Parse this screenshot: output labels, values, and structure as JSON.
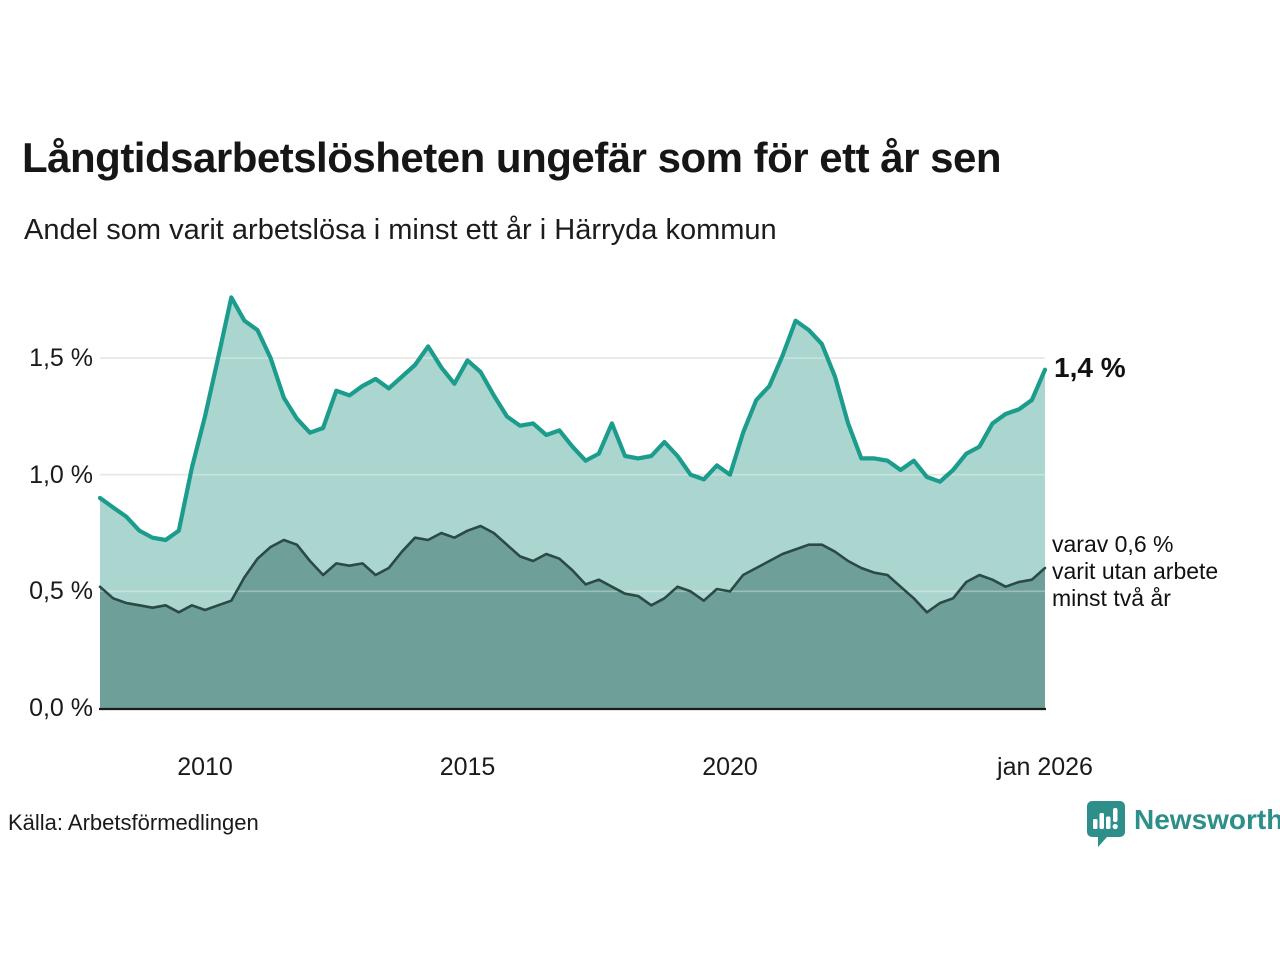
{
  "header": {
    "title": "Långtidsarbetslösheten ungefär som för ett år sen",
    "subtitle": "Andel som varit arbetslösa i minst ett år i Härryda kommun"
  },
  "chart_data": {
    "type": "area",
    "title": "Långtidsarbetslösheten ungefär som för ett år sen",
    "subtitle": "Andel som varit arbetslösa i minst ett år i Härryda kommun",
    "x_start_year": 2008.0,
    "x_end_year": 2026.0,
    "x_step_years": 0.25,
    "x_end_label": "jan 2026",
    "ylim": [
      0,
      1.85
    ],
    "grid": true,
    "legend_position": "none",
    "yticks": [
      {
        "value": 0.0,
        "label": "0,0 %"
      },
      {
        "value": 0.5,
        "label": "0,5 %"
      },
      {
        "value": 1.0,
        "label": "1,0 %"
      },
      {
        "value": 1.5,
        "label": "1,5 %"
      }
    ],
    "xticks": [
      {
        "year": 2010,
        "label": "2010"
      },
      {
        "year": 2015,
        "label": "2015"
      },
      {
        "year": 2020,
        "label": "2020"
      },
      {
        "year": 2026,
        "label": "jan 2026"
      }
    ],
    "series": [
      {
        "name": "Andel som varit arbetslösa i minst ett år",
        "line_color": "#1b9c8c",
        "fill_color": "#abd6cf",
        "latest_value": 1.4,
        "values": [
          0.9,
          0.86,
          0.82,
          0.76,
          0.73,
          0.72,
          0.76,
          1.03,
          1.25,
          1.5,
          1.76,
          1.66,
          1.62,
          1.5,
          1.33,
          1.24,
          1.18,
          1.2,
          1.36,
          1.34,
          1.38,
          1.41,
          1.37,
          1.42,
          1.47,
          1.55,
          1.46,
          1.39,
          1.49,
          1.44,
          1.34,
          1.25,
          1.21,
          1.22,
          1.17,
          1.19,
          1.12,
          1.06,
          1.09,
          1.22,
          1.08,
          1.07,
          1.08,
          1.14,
          1.08,
          1.0,
          0.98,
          1.04,
          1.0,
          1.18,
          1.32,
          1.38,
          1.51,
          1.66,
          1.62,
          1.56,
          1.42,
          1.22,
          1.07,
          1.07,
          1.06,
          1.02,
          1.06,
          0.99,
          0.97,
          1.02,
          1.09,
          1.12,
          1.22,
          1.26,
          1.28,
          1.32,
          1.45
        ]
      },
      {
        "name": "varav varit utan arbete minst två år",
        "line_color": "#2b4a46",
        "fill_color": "#6f9f99",
        "latest_value": 0.6,
        "values": [
          0.52,
          0.47,
          0.45,
          0.44,
          0.43,
          0.44,
          0.41,
          0.44,
          0.42,
          0.44,
          0.46,
          0.56,
          0.64,
          0.69,
          0.72,
          0.7,
          0.63,
          0.57,
          0.62,
          0.61,
          0.62,
          0.57,
          0.6,
          0.67,
          0.73,
          0.72,
          0.75,
          0.73,
          0.76,
          0.78,
          0.75,
          0.7,
          0.65,
          0.63,
          0.66,
          0.64,
          0.59,
          0.53,
          0.55,
          0.52,
          0.49,
          0.48,
          0.44,
          0.47,
          0.52,
          0.5,
          0.46,
          0.51,
          0.5,
          0.57,
          0.6,
          0.63,
          0.66,
          0.68,
          0.7,
          0.7,
          0.67,
          0.63,
          0.6,
          0.58,
          0.57,
          0.52,
          0.47,
          0.41,
          0.45,
          0.47,
          0.54,
          0.57,
          0.55,
          0.52,
          0.54,
          0.55,
          0.6
        ]
      }
    ],
    "annotations": {
      "latest_total": "1,4 %",
      "latest_two_years_lines": [
        "varav 0,6 %",
        "varit utan arbete",
        "minst två år"
      ]
    }
  },
  "footer": {
    "source": "Källa: Arbetsförmedlingen",
    "brand": "Newsworthy",
    "brand_color": "#2e8f8a"
  }
}
